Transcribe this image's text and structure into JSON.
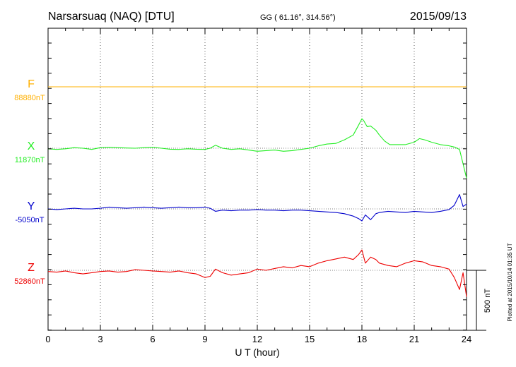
{
  "header": {
    "station": "Narsarsuaq (NAQ)  [DTU]",
    "coords": "GG ( 61.16°, 314.56°)",
    "date": "2015/09/13"
  },
  "side_note": "Plotted at 2015/10/14 01:35 UT",
  "scale_label": "500 nT",
  "chart_data": {
    "type": "line",
    "xlabel": "U T (hour)",
    "xlim": [
      0,
      24
    ],
    "xticks": [
      "0",
      "3",
      "6",
      "9",
      "12",
      "15",
      "18",
      "21",
      "24"
    ],
    "scale_bar_nT": 500,
    "series": [
      {
        "name": "F",
        "baseline_label": "88880nT",
        "color": "#ffb000",
        "x": [
          0,
          3,
          6,
          9,
          12,
          15,
          18,
          21,
          24
        ],
        "values": [
          0,
          0,
          0,
          0,
          0,
          0,
          0,
          0,
          0
        ]
      },
      {
        "name": "X",
        "baseline_label": "11870nT",
        "color": "#22ee22",
        "x": [
          0,
          0.5,
          1,
          1.5,
          2,
          2.5,
          3,
          3.5,
          4,
          4.5,
          5,
          5.5,
          6,
          6.5,
          7,
          7.5,
          8,
          8.5,
          9,
          9.3,
          9.6,
          10,
          10.5,
          11,
          11.5,
          12,
          12.5,
          13,
          13.5,
          14,
          14.5,
          15,
          15.5,
          16,
          16.5,
          17,
          17.5,
          17.8,
          18,
          18.1,
          18.3,
          18.5,
          18.8,
          19,
          19.3,
          19.6,
          20,
          20.5,
          21,
          21.3,
          21.6,
          22,
          22.5,
          23,
          23.3,
          23.6,
          23.8,
          24
        ],
        "values": [
          -5,
          -10,
          -5,
          5,
          0,
          -10,
          5,
          8,
          5,
          2,
          0,
          5,
          8,
          0,
          -8,
          -10,
          -5,
          -8,
          -10,
          0,
          25,
          0,
          -10,
          -5,
          -15,
          -25,
          -20,
          -15,
          -25,
          -20,
          -10,
          0,
          20,
          35,
          40,
          70,
          110,
          190,
          245,
          230,
          180,
          185,
          150,
          110,
          60,
          30,
          30,
          30,
          50,
          80,
          70,
          50,
          30,
          20,
          10,
          -10,
          -130,
          -250
        ]
      },
      {
        "name": "Y",
        "baseline_label": "-5050nT",
        "color": "#0000cc",
        "x": [
          0,
          0.5,
          1,
          1.5,
          2,
          2.5,
          3,
          3.5,
          4,
          4.5,
          5,
          5.5,
          6,
          6.5,
          7,
          7.5,
          8,
          8.5,
          9,
          9.3,
          9.6,
          10,
          10.5,
          11,
          11.5,
          12,
          12.5,
          13,
          13.5,
          14,
          14.5,
          15,
          15.5,
          16,
          16.5,
          17,
          17.5,
          17.8,
          18,
          18.2,
          18.5,
          18.8,
          19,
          19.5,
          20,
          20.5,
          21,
          21.5,
          22,
          22.5,
          23,
          23.3,
          23.6,
          23.8,
          24
        ],
        "values": [
          0,
          -5,
          0,
          5,
          0,
          0,
          5,
          15,
          10,
          5,
          10,
          15,
          10,
          5,
          10,
          15,
          10,
          10,
          15,
          5,
          -20,
          -10,
          -15,
          -10,
          -10,
          -5,
          -10,
          -10,
          -15,
          -10,
          -10,
          -15,
          -20,
          -25,
          -30,
          -40,
          -60,
          -80,
          -100,
          -50,
          -90,
          -40,
          -30,
          -20,
          -25,
          -30,
          -20,
          -25,
          -30,
          -20,
          -5,
          30,
          120,
          20,
          40
        ]
      },
      {
        "name": "Z",
        "baseline_label": "52860nT",
        "color": "#ee0000",
        "x": [
          0,
          0.5,
          1,
          1.5,
          2,
          2.5,
          3,
          3.5,
          4,
          4.5,
          5,
          5.5,
          6,
          6.5,
          7,
          7.5,
          8,
          8.5,
          9,
          9.3,
          9.6,
          10,
          10.5,
          11,
          11.5,
          12,
          12.5,
          13,
          13.5,
          14,
          14.5,
          15,
          15.5,
          16,
          16.5,
          17,
          17.5,
          17.8,
          18,
          18.2,
          18.5,
          18.8,
          19,
          19.5,
          20,
          20.5,
          21,
          21.5,
          22,
          22.5,
          23,
          23.3,
          23.6,
          23.8,
          24
        ],
        "values": [
          -10,
          -15,
          -5,
          -20,
          -30,
          -20,
          -10,
          -5,
          -15,
          -10,
          5,
          0,
          -5,
          -10,
          -15,
          -5,
          -20,
          -30,
          -60,
          -50,
          10,
          -20,
          -40,
          -30,
          -20,
          10,
          0,
          15,
          30,
          20,
          40,
          30,
          60,
          80,
          95,
          110,
          90,
          130,
          170,
          60,
          110,
          90,
          60,
          40,
          30,
          60,
          80,
          70,
          40,
          30,
          10,
          -60,
          -160,
          -20,
          -220
        ]
      }
    ]
  }
}
